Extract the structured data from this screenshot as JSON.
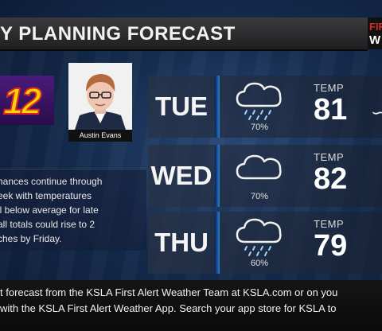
{
  "header": {
    "title": "Y PLANNING FORECAST",
    "brand_line1": "FIRST",
    "brand_line2": "W"
  },
  "station_logo": {
    "text": "12"
  },
  "anchor": {
    "name": "Austin Evans"
  },
  "summary": {
    "lines": [
      "hances continue through",
      "eek with temperatures",
      "ll below average for late",
      "all totals could rise to 2",
      "ches by Friday."
    ]
  },
  "days": [
    {
      "day": "TUE",
      "icon": "rain-cloud-icon",
      "pop": "70%",
      "temp_label": "TEMP",
      "temp": "81"
    },
    {
      "day": "WED",
      "icon": "cloud-icon",
      "pop": "70%",
      "temp_label": "TEMP",
      "temp": "82"
    },
    {
      "day": "THU",
      "icon": "rain-cloud-icon",
      "pop": "60%",
      "temp_label": "TEMP",
      "temp": "79"
    }
  ],
  "footer": {
    "line1": "t forecast from the KSLA First Alert Weather Team at KSLA.com or on you",
    "line2": "with the KSLA First Alert Weather App. Search your app store for KSLA to"
  },
  "colors": {
    "accent_blue": "#2a7fd8",
    "brand_red": "#d52b1e",
    "logo_yellow": "#ffd300",
    "logo_purple": "#4b1b7a"
  }
}
